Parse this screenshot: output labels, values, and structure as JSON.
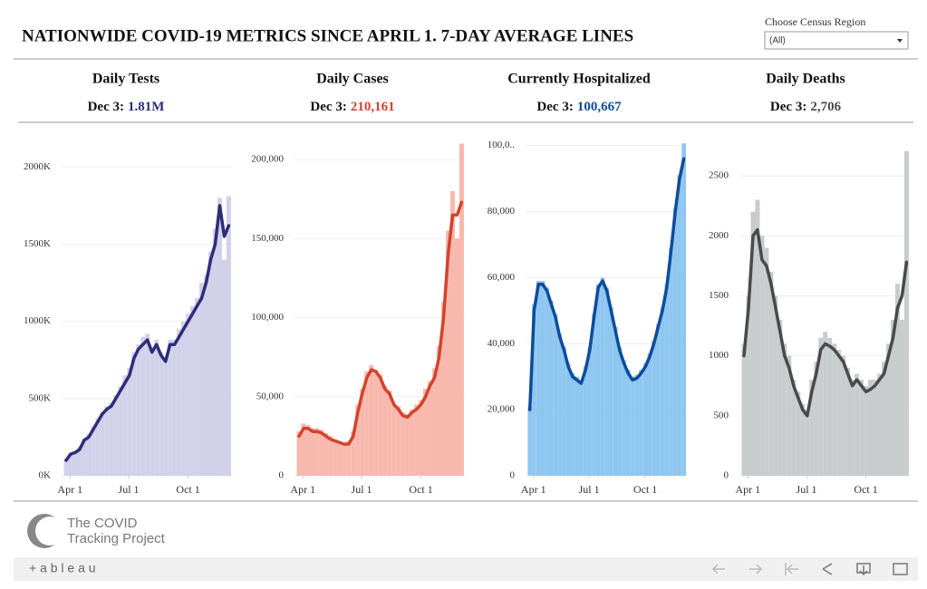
{
  "page": {
    "title": "NATIONWIDE COVID-19 METRICS SINCE APRIL 1. 7-DAY AVERAGE LINES",
    "filter_label": "Choose Census Region",
    "filter_value": "(All)",
    "logo_line1": "The COVID",
    "logo_line2": "Tracking Project",
    "footer_brand": "+ a b l e a u"
  },
  "chart_data": [
    {
      "type": "bar_line",
      "title": "Daily Tests",
      "headline_date": "Dec 3:",
      "headline_value": "1.81M",
      "x": [
        85,
        92,
        99,
        106,
        113,
        120,
        127,
        134,
        141,
        148,
        155,
        162,
        169,
        176,
        183,
        190,
        197,
        204,
        211,
        218,
        225,
        232,
        239,
        246,
        253,
        260,
        267,
        274,
        281,
        288,
        295,
        302,
        309,
        316,
        323,
        330,
        337
      ],
      "xlim": [
        78,
        342
      ],
      "xticks": [
        {
          "value": 91,
          "label": "Apr 1"
        },
        {
          "value": 182,
          "label": "Jul 1"
        },
        {
          "value": 274,
          "label": "Oct 1"
        }
      ],
      "ylim": [
        0,
        2160000
      ],
      "yticks": [
        {
          "value": 0,
          "label": "0K"
        },
        {
          "value": 500000,
          "label": "500K"
        },
        {
          "value": 1000000,
          "label": "1000K"
        },
        {
          "value": 1500000,
          "label": "1500K"
        },
        {
          "value": 2000000,
          "label": "2000K"
        }
      ],
      "grid": true,
      "series": [
        {
          "mark": "bar",
          "color": "#d2d1ea",
          "values": [
            110000,
            150000,
            160000,
            190000,
            240000,
            270000,
            320000,
            370000,
            410000,
            450000,
            470000,
            520000,
            580000,
            650000,
            700000,
            800000,
            850000,
            900000,
            920000,
            820000,
            880000,
            800000,
            760000,
            880000,
            880000,
            950000,
            1000000,
            1050000,
            1100000,
            1150000,
            1250000,
            1300000,
            1450000,
            1600000,
            1800000,
            1400000,
            1810000
          ]
        },
        {
          "mark": "line",
          "color": "#2e2d7a",
          "values": [
            100000,
            140000,
            150000,
            170000,
            230000,
            250000,
            300000,
            350000,
            400000,
            430000,
            450000,
            500000,
            550000,
            600000,
            650000,
            760000,
            820000,
            850000,
            880000,
            800000,
            850000,
            780000,
            740000,
            850000,
            850000,
            900000,
            950000,
            1000000,
            1050000,
            1100000,
            1150000,
            1250000,
            1400000,
            1500000,
            1750000,
            1550000,
            1620000
          ]
        }
      ]
    },
    {
      "type": "bar_line",
      "title": "Daily Cases",
      "headline_date": "Dec 3:",
      "headline_value": "210,161",
      "x": [
        85,
        92,
        99,
        106,
        113,
        120,
        127,
        134,
        141,
        148,
        155,
        162,
        169,
        176,
        183,
        190,
        197,
        204,
        211,
        218,
        225,
        232,
        239,
        246,
        253,
        260,
        267,
        274,
        281,
        288,
        295,
        302,
        309,
        316,
        323,
        330,
        337
      ],
      "xlim": [
        78,
        342
      ],
      "xticks": [
        {
          "value": 91,
          "label": "Apr 1"
        },
        {
          "value": 182,
          "label": "Jul 1"
        },
        {
          "value": 274,
          "label": "Oct 1"
        }
      ],
      "ylim": [
        0,
        211000
      ],
      "yticks": [
        0,
        {
          "value": 50000,
          "label": "50,000"
        },
        {
          "value": 100000,
          "label": "100,000"
        },
        {
          "value": 150000,
          "label": "150,000"
        },
        {
          "value": 200000,
          "label": "200,000"
        }
      ],
      "grid": true,
      "series": [
        {
          "mark": "bar",
          "color": "#f8b8ae",
          "values": [
            28000,
            33000,
            32000,
            30000,
            30000,
            29000,
            27000,
            25000,
            23000,
            22000,
            21000,
            22000,
            28000,
            45000,
            55000,
            66000,
            70000,
            67000,
            64000,
            57000,
            54000,
            46000,
            44000,
            40000,
            39000,
            42000,
            45000,
            48000,
            55000,
            60000,
            68000,
            82000,
            110000,
            155000,
            180000,
            150000,
            210161
          ]
        },
        {
          "mark": "line",
          "color": "#d3432b",
          "values": [
            25000,
            30000,
            30000,
            28000,
            28000,
            27000,
            25000,
            23000,
            22000,
            21000,
            20000,
            20000,
            25000,
            40000,
            52000,
            62000,
            67000,
            66000,
            62000,
            55000,
            52000,
            45000,
            42000,
            38000,
            37000,
            40000,
            42000,
            45000,
            50000,
            57000,
            62000,
            75000,
            100000,
            140000,
            165000,
            165000,
            173000
          ]
        }
      ]
    },
    {
      "type": "bar_line",
      "title": "Currently Hospitalized",
      "headline_date": "Dec 3:",
      "headline_value": "100,667",
      "x": [
        85,
        92,
        99,
        106,
        113,
        120,
        127,
        134,
        141,
        148,
        155,
        162,
        169,
        176,
        183,
        190,
        197,
        204,
        211,
        218,
        225,
        232,
        239,
        246,
        253,
        260,
        267,
        274,
        281,
        288,
        295,
        302,
        309,
        316,
        323,
        330,
        337
      ],
      "xlim": [
        78,
        342
      ],
      "xticks": [
        {
          "value": 91,
          "label": "Apr 1"
        },
        {
          "value": 182,
          "label": "Jul 1"
        },
        {
          "value": 274,
          "label": "Oct 1"
        }
      ],
      "ylim": [
        0,
        101000
      ],
      "yticks": [
        0,
        {
          "value": 20000,
          "label": "20,000"
        },
        {
          "value": 40000,
          "label": "40,000"
        },
        {
          "value": 60000,
          "label": "60,000"
        },
        {
          "value": 80000,
          "label": "80,000"
        },
        {
          "value": 100000,
          "label": "100,0.."
        }
      ],
      "grid": true,
      "series": [
        {
          "mark": "bar",
          "color": "#8fc6f0",
          "values": [
            21000,
            52000,
            59000,
            59000,
            57000,
            53000,
            49000,
            43000,
            39000,
            34000,
            31000,
            30000,
            29000,
            33000,
            39000,
            49000,
            58000,
            60000,
            57000,
            51000,
            45000,
            39000,
            35000,
            32000,
            30000,
            30500,
            32000,
            34000,
            37000,
            41000,
            46000,
            51000,
            58000,
            69000,
            81000,
            91000,
            100667
          ]
        },
        {
          "mark": "line",
          "color": "#0d4c9c",
          "values": [
            20000,
            50000,
            58000,
            58000,
            56000,
            52000,
            48000,
            42000,
            38000,
            33000,
            30000,
            29000,
            28000,
            32000,
            38000,
            48000,
            57000,
            59000,
            56000,
            50000,
            44000,
            38000,
            34000,
            31000,
            29000,
            29500,
            31000,
            33000,
            36000,
            40000,
            45000,
            50000,
            57000,
            68000,
            80000,
            90000,
            96000
          ]
        }
      ]
    },
    {
      "type": "bar_line",
      "title": "Daily Deaths",
      "headline_date": "Dec 3:",
      "headline_value": "2,706",
      "x": [
        85,
        92,
        99,
        106,
        113,
        120,
        127,
        134,
        141,
        148,
        155,
        162,
        169,
        176,
        183,
        190,
        197,
        204,
        211,
        218,
        225,
        232,
        239,
        246,
        253,
        260,
        267,
        274,
        281,
        288,
        295,
        302,
        309,
        316,
        323,
        330,
        337
      ],
      "xlim": [
        78,
        342
      ],
      "xticks": [
        {
          "value": 91,
          "label": "Apr 1"
        },
        {
          "value": 182,
          "label": "Jul 1"
        },
        {
          "value": 274,
          "label": "Oct 1"
        }
      ],
      "ylim": [
        0,
        2780
      ],
      "yticks": [
        0,
        500,
        1000,
        1500,
        2000,
        2500
      ],
      "grid": true,
      "series": [
        {
          "mark": "bar",
          "color": "#c8cccc",
          "values": [
            1100,
            1500,
            2200,
            2300,
            2000,
            1900,
            1700,
            1500,
            1300,
            1100,
            1000,
            800,
            700,
            600,
            550,
            800,
            950,
            1150,
            1200,
            1150,
            1100,
            1050,
            1000,
            900,
            800,
            850,
            800,
            750,
            800,
            800,
            850,
            950,
            1100,
            1300,
            1600,
            1300,
            2706
          ]
        },
        {
          "mark": "line",
          "color": "#4a4a4a",
          "values": [
            1000,
            1400,
            2000,
            2050,
            1800,
            1750,
            1600,
            1400,
            1200,
            1000,
            900,
            750,
            650,
            550,
            500,
            700,
            850,
            1050,
            1100,
            1080,
            1050,
            1000,
            950,
            850,
            750,
            800,
            750,
            700,
            720,
            750,
            800,
            850,
            1000,
            1150,
            1400,
            1500,
            1780
          ]
        }
      ]
    }
  ]
}
